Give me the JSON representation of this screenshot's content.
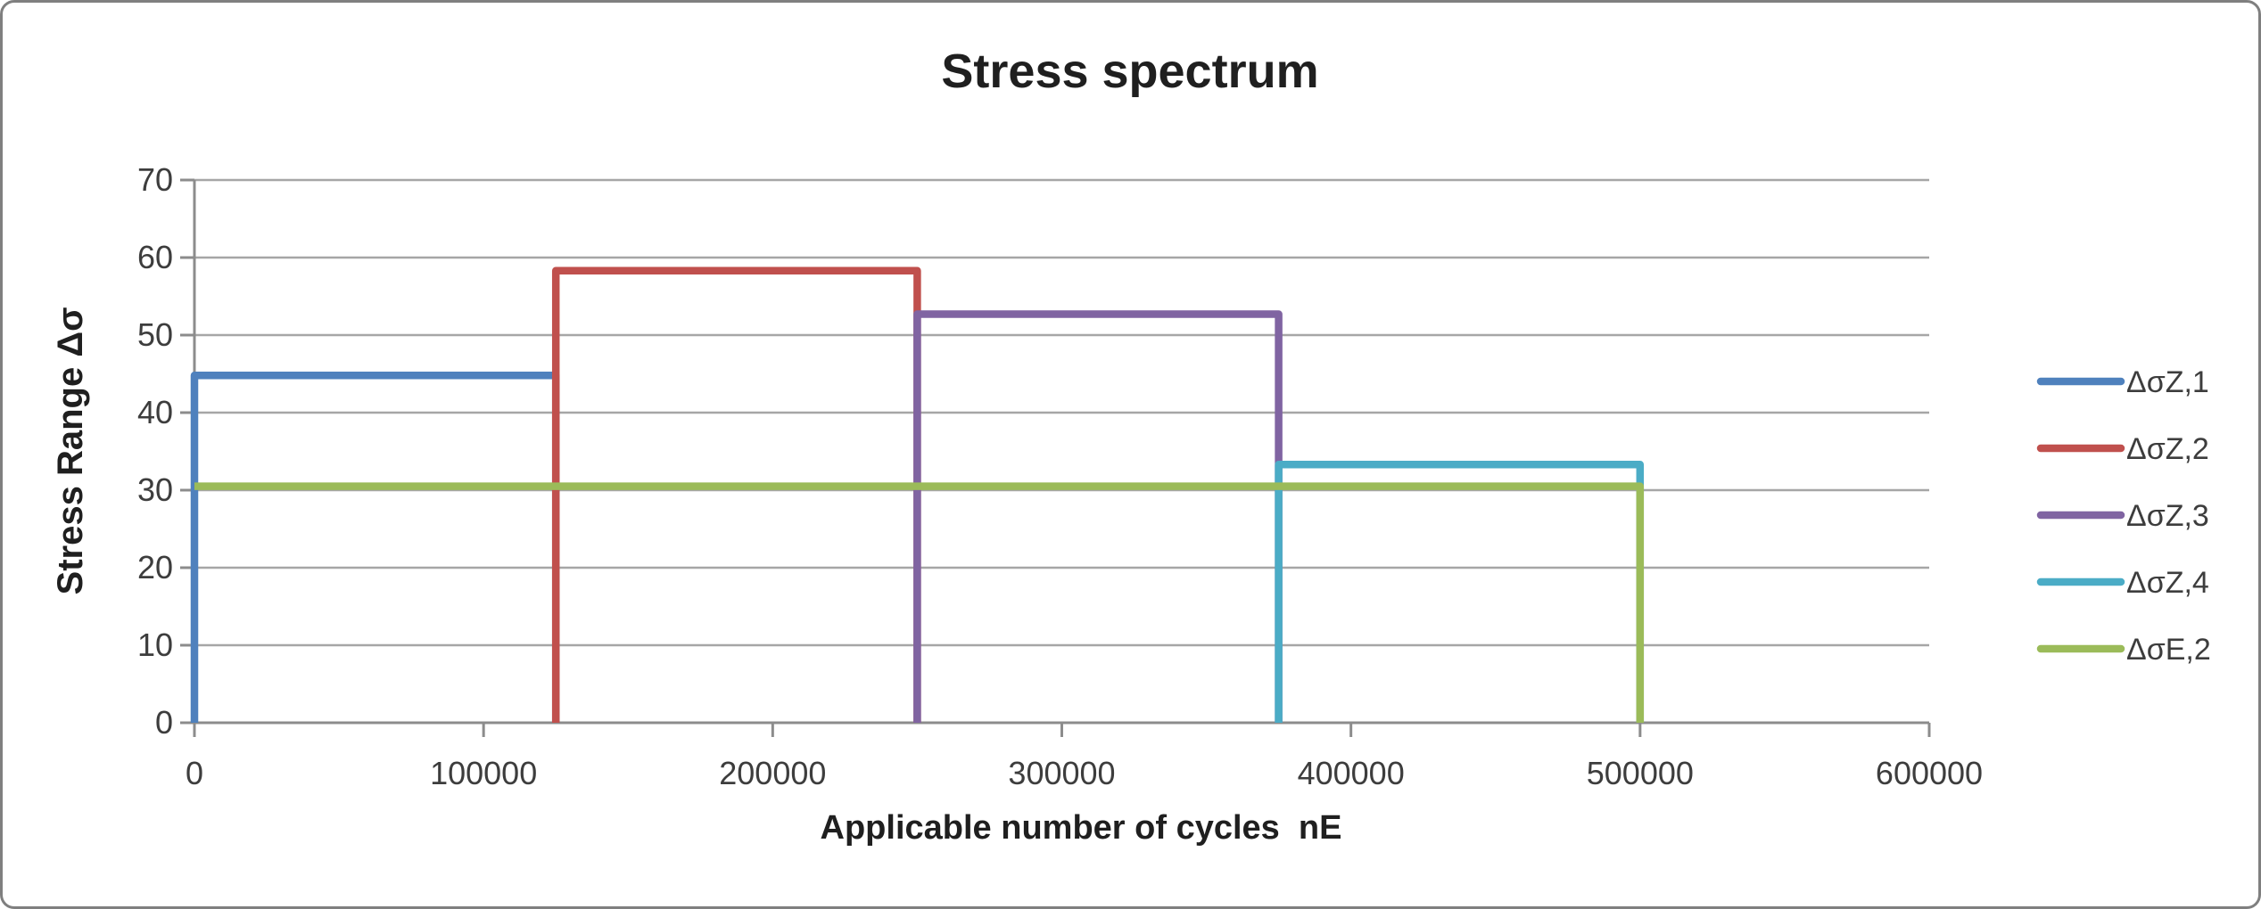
{
  "chart": {
    "title": "Stress spectrum",
    "x_axis_title": "Applicable number of cycles  nE",
    "y_axis_title": "Stress Range Δσ"
  },
  "chart_data": {
    "type": "line",
    "subtype": "step-stress-spectrum",
    "title": "Stress spectrum",
    "xlabel": "Applicable number of cycles  nE",
    "ylabel": "Stress Range Δσ",
    "xlim": [
      0,
      600000
    ],
    "ylim": [
      0,
      70
    ],
    "x_ticks": [
      0,
      100000,
      200000,
      300000,
      400000,
      500000,
      600000
    ],
    "y_ticks": [
      0,
      10,
      20,
      30,
      40,
      50,
      60,
      70
    ],
    "grid": "horizontal-only",
    "legend_position": "right",
    "series": [
      {
        "name": "ΔσZ,1",
        "color": "#4F81BD",
        "stress_range": 44.8,
        "cycles_start": 0,
        "cycles_end": 125000,
        "points": [
          [
            0,
            0
          ],
          [
            0,
            44.8
          ],
          [
            125000,
            44.8
          ],
          [
            125000,
            0
          ]
        ]
      },
      {
        "name": "ΔσZ,2",
        "color": "#C0504D",
        "stress_range": 58.3,
        "cycles_start": 125000,
        "cycles_end": 250000,
        "points": [
          [
            125000,
            0
          ],
          [
            125000,
            58.3
          ],
          [
            250000,
            58.3
          ],
          [
            250000,
            0
          ]
        ]
      },
      {
        "name": "ΔσZ,3",
        "color": "#8064A2",
        "stress_range": 52.7,
        "cycles_start": 250000,
        "cycles_end": 375000,
        "points": [
          [
            250000,
            0
          ],
          [
            250000,
            52.7
          ],
          [
            375000,
            52.7
          ],
          [
            375000,
            0
          ]
        ]
      },
      {
        "name": "ΔσZ,4",
        "color": "#4BACC6",
        "stress_range": 33.3,
        "cycles_start": 375000,
        "cycles_end": 500000,
        "points": [
          [
            375000,
            0
          ],
          [
            375000,
            33.3
          ],
          [
            500000,
            33.3
          ],
          [
            500000,
            0
          ]
        ]
      },
      {
        "name": "ΔσE,2",
        "color": "#9BBB59",
        "stress_range": 30.5,
        "cycles_start": 0,
        "cycles_end": 500000,
        "points": [
          [
            0,
            30.5
          ],
          [
            500000,
            30.5
          ],
          [
            500000,
            0
          ]
        ]
      }
    ],
    "colors": {
      "gridline": "#A6A6A6",
      "axis": "#8C8C8C",
      "tick_text": "#3D3D3D",
      "title_text": "#1F1F1F",
      "frame_border": "#7F7F7F",
      "background": "#FFFFFF"
    }
  }
}
